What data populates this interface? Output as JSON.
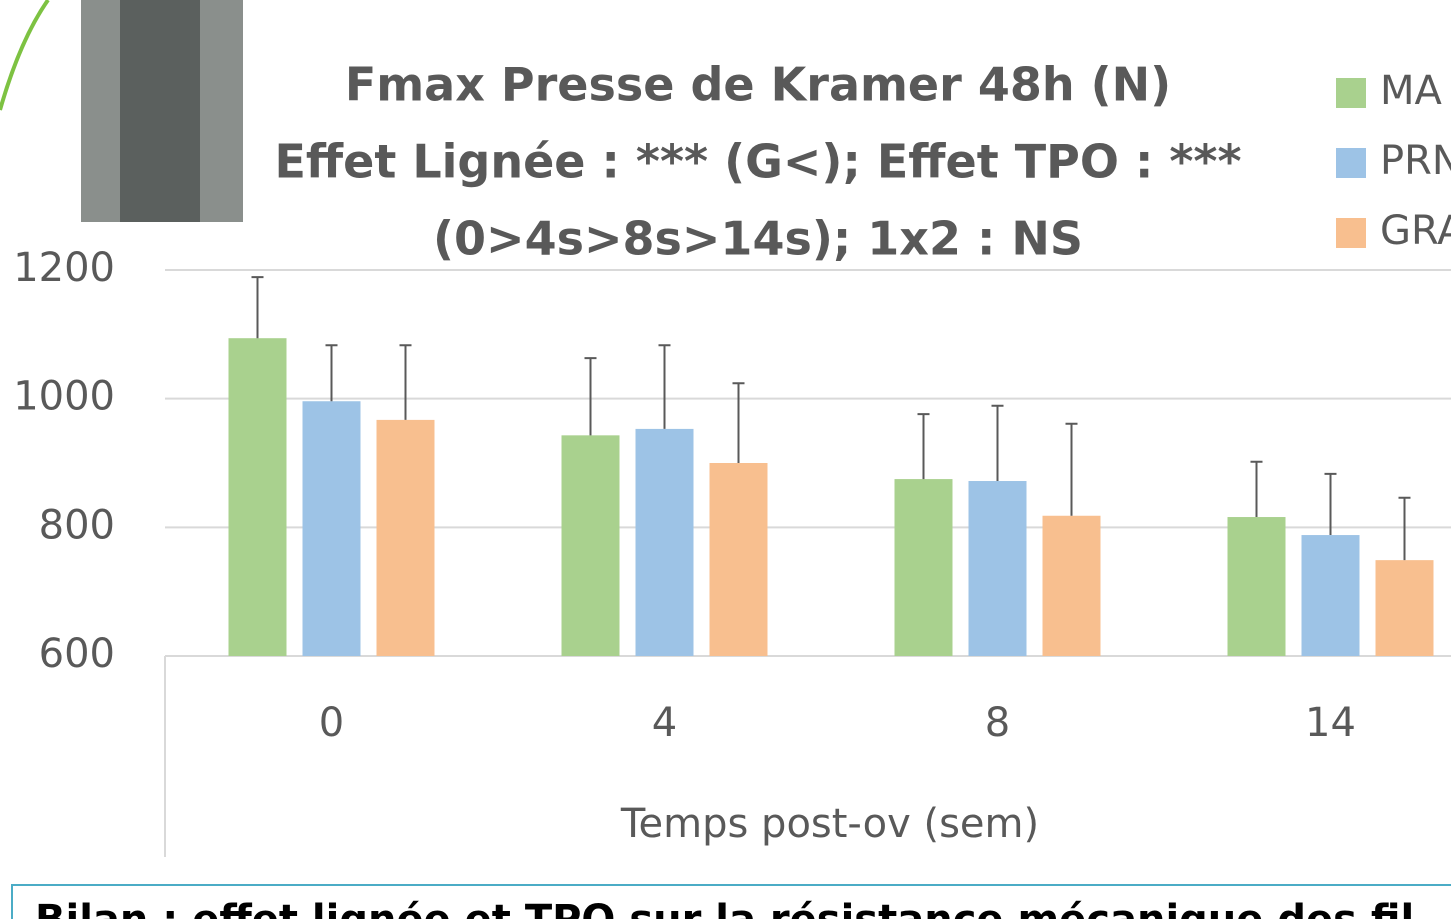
{
  "chart_data": {
    "type": "bar",
    "title": [
      "Fmax Presse de Kramer 48h (N)",
      "Effet Lignée : *** (G<); Effet TPO : ***",
      "(0>4s>8s>14s); 1x2 : NS"
    ],
    "x_label": "Temps post-ov (sem)",
    "categories": [
      "0",
      "4",
      "8",
      "14"
    ],
    "series": [
      {
        "name": "MA",
        "color": "#a9d18e",
        "values": [
          1094,
          943,
          875,
          816
        ],
        "errors": [
          95,
          120,
          101,
          86
        ]
      },
      {
        "name": "PRN",
        "color": "#9dc3e6",
        "values": [
          996,
          953,
          872,
          788
        ],
        "errors": [
          87,
          130,
          117,
          95
        ]
      },
      {
        "name": "GRA",
        "color": "#f8bf8f",
        "values": [
          967,
          900,
          818,
          749
        ],
        "errors": [
          116,
          124,
          143,
          97
        ]
      }
    ],
    "ylim": [
      600,
      1200
    ],
    "yticks": [
      600,
      800,
      1000,
      1200
    ],
    "grid": true,
    "footer": "Bilan : effet lignée et TPO sur la résistance mécanique des fil"
  }
}
